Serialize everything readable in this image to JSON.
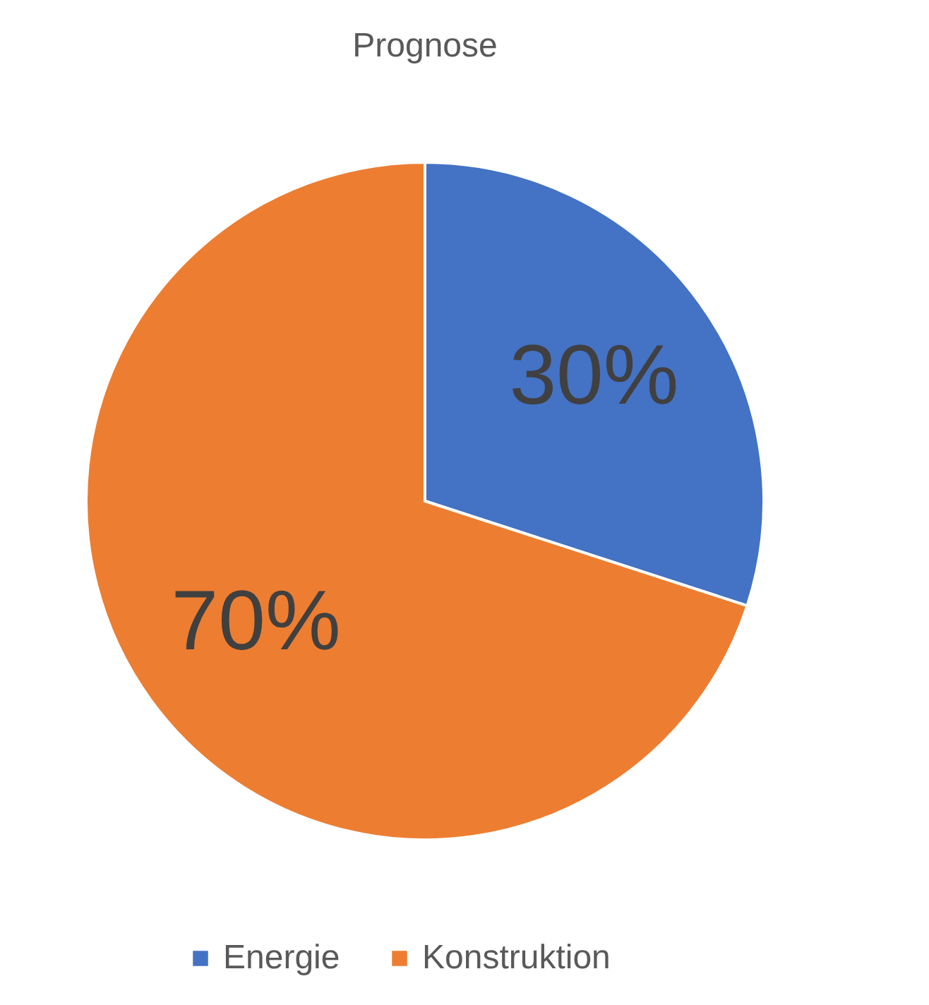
{
  "chart_data": {
    "type": "pie",
    "title": "Prognose",
    "categories": [
      "Energie",
      "Konstruktion"
    ],
    "values": [
      30,
      70
    ],
    "colors": [
      "#4472c4",
      "#ed7d31"
    ],
    "value_labels": [
      "30%",
      "70%"
    ],
    "legend": "bottom"
  }
}
